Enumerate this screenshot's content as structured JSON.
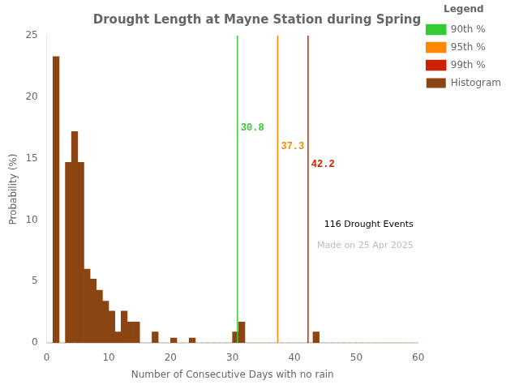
{
  "chart_data": {
    "type": "histogram",
    "title": "Drought Length at Mayne Station during Spring",
    "x_label": "Number of Consecutive Days with no rain",
    "y_label": "Probability (%)",
    "bins": [
      0,
      1,
      2,
      3,
      4,
      5,
      6,
      7,
      8,
      9,
      10,
      11,
      12,
      13,
      14,
      15,
      16,
      17,
      18,
      19,
      20,
      21,
      22,
      23,
      24,
      25,
      26,
      27,
      28,
      29,
      30,
      31,
      32,
      33,
      34,
      35,
      36,
      37,
      38,
      39,
      40,
      41,
      42,
      43,
      44,
      45,
      46,
      47,
      48,
      49,
      50,
      51,
      52,
      53,
      54,
      55,
      56,
      57,
      58,
      59,
      60
    ],
    "series": [
      {
        "name": "Histogram",
        "color": "#8B4513",
        "values": [
          0.0,
          23.3,
          0.0,
          14.7,
          17.2,
          14.7,
          6.0,
          5.2,
          4.3,
          3.4,
          2.6,
          0.9,
          2.6,
          1.7,
          1.7,
          0.0,
          0.0,
          0.9,
          0.0,
          0.0,
          0.4,
          0.0,
          0.0,
          0.4,
          0.0,
          0.0,
          0.0,
          0.0,
          0.0,
          0.0,
          0.9,
          1.7,
          0.0,
          0.0,
          0.0,
          0.0,
          0.0,
          0.0,
          0.0,
          0.0,
          0.0,
          0.0,
          0.0,
          0.9,
          0.0,
          0.0,
          0.0,
          0.0,
          0.0,
          0.0,
          0.0,
          0.0,
          0.0,
          0.0,
          0.0,
          0.0,
          0.0,
          0.0,
          0.0,
          0.0
        ]
      }
    ],
    "vlines": [
      {
        "name": "90th %",
        "x": 30.8,
        "color": "#33CC33"
      },
      {
        "name": "95th %",
        "x": 37.3,
        "color": "#FF8800"
      },
      {
        "name": "99th %",
        "x": 42.2,
        "color": "#CC2200"
      }
    ],
    "annotations": [
      {
        "text": "116 Drought Events",
        "color": "#000000"
      },
      {
        "text": "Made on 25 Apr 2025",
        "color": "#BBBBBB"
      }
    ],
    "legend_title": "Legend",
    "legend": "upper right",
    "xlim": [
      0,
      60
    ],
    "ylim": [
      0,
      25
    ],
    "xticks": [
      0,
      10,
      20,
      30,
      40,
      50,
      60
    ],
    "yticks": [
      0,
      5,
      10,
      15,
      20,
      25
    ],
    "grid": false
  }
}
